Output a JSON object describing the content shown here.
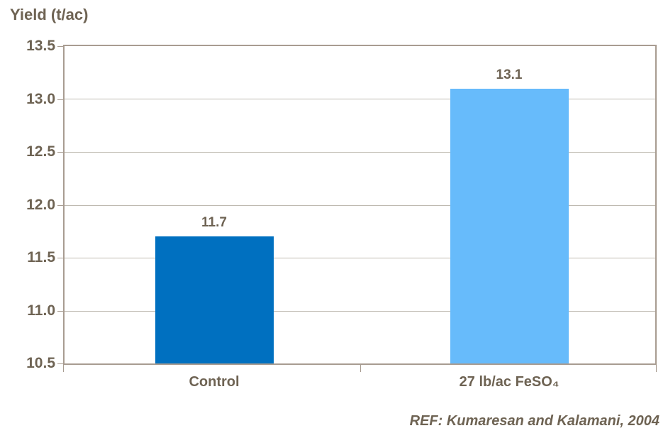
{
  "chart_title": "Yield (t/ac)",
  "caption": "REF: Kumaresan and Kalamani, 2004",
  "colors": {
    "text": "#6E6353",
    "axis_border": "#A89C91",
    "gridline": "#BFBAB1",
    "background": "#FFFFFF",
    "bar_control": "#0070C0",
    "bar_feso4": "#67BBFB"
  },
  "chart_data": {
    "type": "bar",
    "title": "Yield (t/ac)",
    "ylabel": "Yield (t/ac)",
    "xlabel": "",
    "categories": [
      "Control",
      "27 lb/ac FeSO₄"
    ],
    "values": [
      11.7,
      13.1
    ],
    "value_labels": [
      "11.7",
      "13.1"
    ],
    "bar_colors": [
      "#0070C0",
      "#67BBFB"
    ],
    "ylim": [
      10.5,
      13.5
    ],
    "ytick_step": 0.5,
    "yticks": [
      13.5,
      13.0,
      12.5,
      12.0,
      11.5,
      11.0,
      10.5
    ],
    "ytick_labels": [
      "13.5",
      "13.0",
      "12.5",
      "12.0",
      "11.5",
      "11.0",
      "10.5"
    ],
    "grid": true,
    "legend": false,
    "annotation": "REF: Kumaresan and Kalamani, 2004"
  }
}
